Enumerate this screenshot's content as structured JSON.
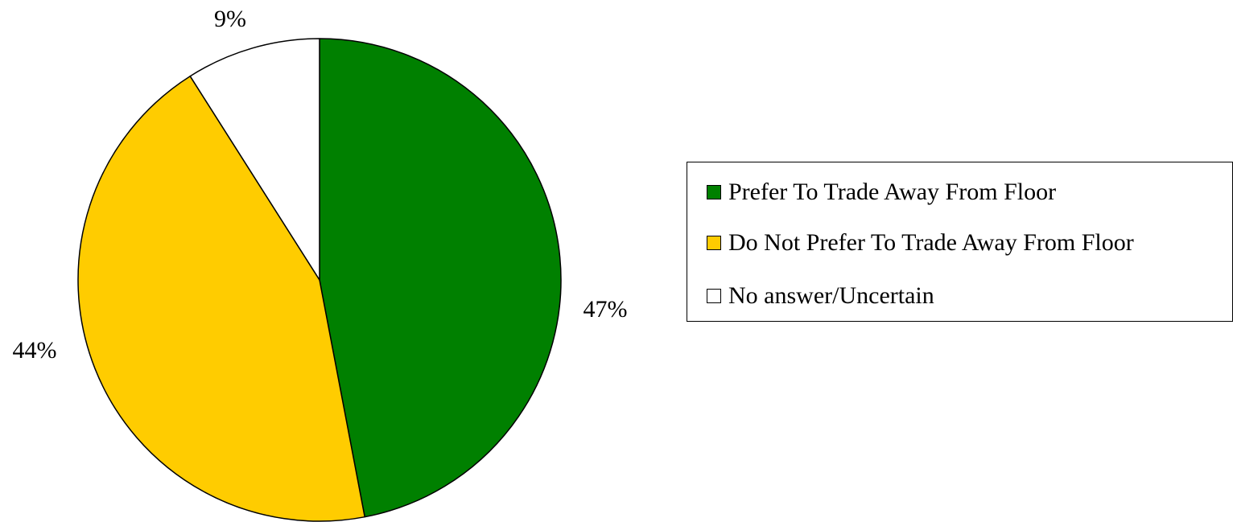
{
  "chart_data": {
    "type": "pie",
    "slices": [
      {
        "label": "Prefer To Trade Away From Floor",
        "value": 47,
        "display": "47%",
        "color": "#008000"
      },
      {
        "label": "Do Not Prefer To Trade Away From Floor",
        "value": 44,
        "display": "44%",
        "color": "#FFCC00"
      },
      {
        "label": "No answer/Uncertain",
        "value": 9,
        "display": "9%",
        "color": "#FFFFFF"
      }
    ],
    "start": "12 o'clock",
    "direction": "clockwise",
    "legend_position": "right"
  }
}
